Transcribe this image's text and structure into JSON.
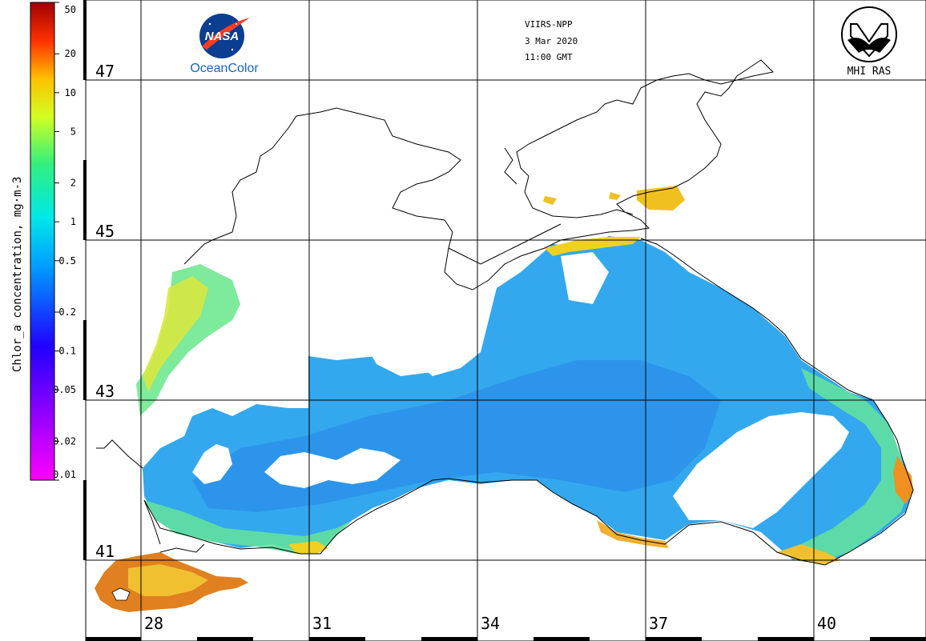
{
  "satellite": "VIIRS-NPP",
  "date": "3 Mar 2020",
  "time": "11:00 GMT",
  "logos": {
    "nasa_text": "NASA",
    "oceancolor_text": "OceanColor",
    "mhi_text": "MHI RAS"
  },
  "colorbar": {
    "title": "Chlor_a concentration, mg·m-3",
    "ticks": [
      "50",
      "20",
      "10",
      "5",
      "2",
      "1",
      "0.5",
      "0.2",
      "0.1",
      "0.05",
      "0.02",
      "0.01"
    ],
    "scale": "log",
    "range": [
      0.01,
      50
    ],
    "colors": [
      "#ff00ff",
      "#8000ff",
      "#0000ff",
      "#00c8ff",
      "#00ffc8",
      "#ffff00",
      "#ff8000",
      "#ff0000",
      "#800000"
    ]
  },
  "grid": {
    "lat_labels": [
      "47",
      "45",
      "43",
      "41"
    ],
    "lon_labels": [
      "28",
      "31",
      "34",
      "37",
      "40"
    ]
  },
  "map": {
    "sea_colors": {
      "open_sea": "#33a8ee",
      "deep_blue": "#2288e8",
      "coastal": "#40e8c0",
      "shelf": "#a0ee60",
      "bloom_yellow": "#f0d020",
      "bloom_orange": "#f08020",
      "bloom_red": "#c03010"
    },
    "land_color": "#ffffff",
    "coast_color": "#000000"
  }
}
